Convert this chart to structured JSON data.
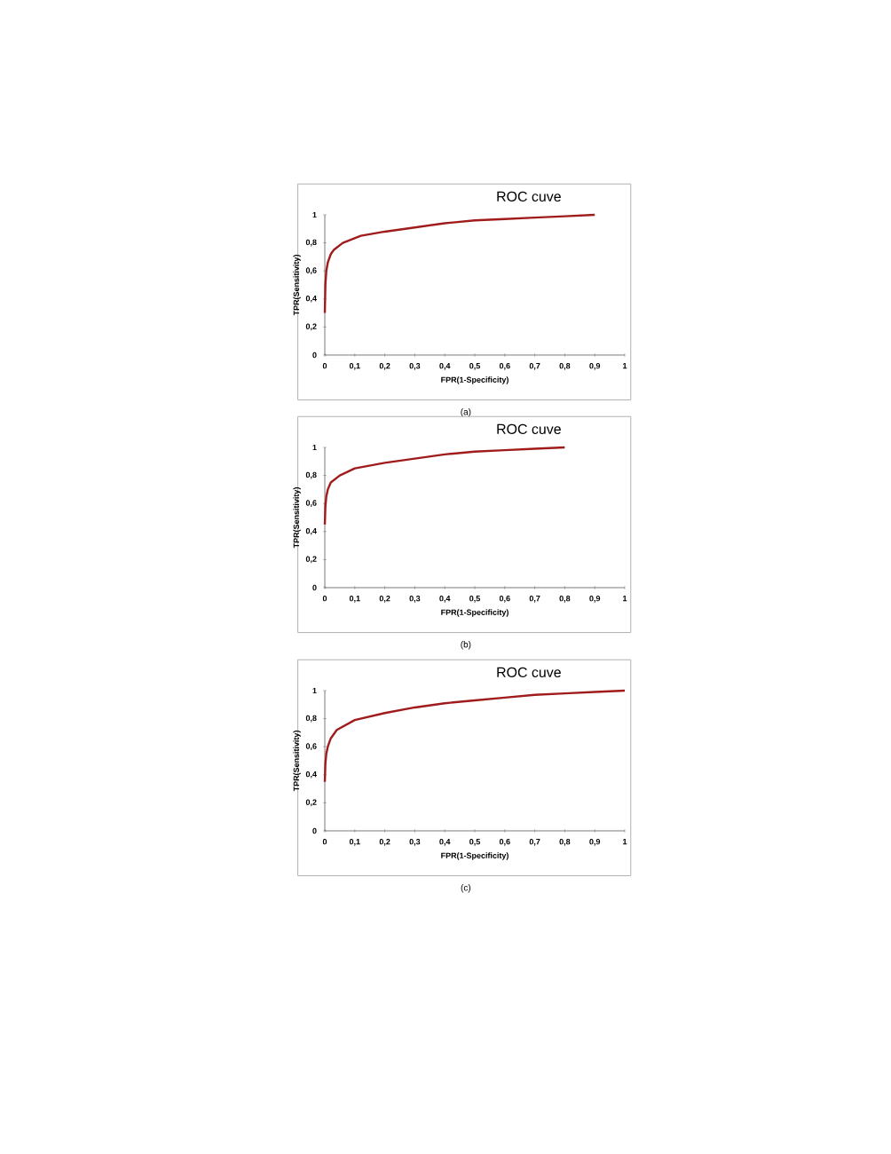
{
  "chart_data": [
    {
      "type": "line",
      "title": "ROC cuve",
      "xlabel": "FPR(1-Specificity)",
      "ylabel": "TPR(Sensitivity)",
      "annotations": [
        "(a)"
      ],
      "x": [
        0,
        0.002,
        0.005,
        0.01,
        0.02,
        0.03,
        0.06,
        0.12,
        0.2,
        0.3,
        0.4,
        0.5,
        0.6,
        0.7,
        0.8,
        0.9
      ],
      "series": [
        {
          "color": "#a01c1c",
          "values": [
            0.3,
            0.5,
            0.6,
            0.66,
            0.72,
            0.75,
            0.8,
            0.85,
            0.88,
            0.91,
            0.94,
            0.96,
            0.97,
            0.98,
            0.99,
            1
          ]
        }
      ],
      "xlim": [
        0,
        1
      ],
      "ylim": [
        0,
        1
      ],
      "line_style": "solid",
      "marker": "none",
      "xticks": [
        0,
        {
          "value": 0.1,
          "label": "0,1"
        },
        {
          "value": 0.2,
          "label": "0,2"
        },
        {
          "value": 0.3,
          "label": "0,3"
        },
        {
          "value": 0.4,
          "label": "0,4"
        },
        {
          "value": 0.5,
          "label": "0,5"
        },
        {
          "value": 0.6,
          "label": "0,6"
        },
        {
          "value": 0.7,
          "label": "0,7"
        },
        {
          "value": 0.8,
          "label": "0,8"
        },
        {
          "value": 0.9,
          "label": "0,9"
        },
        1
      ],
      "yticks": [
        0,
        {
          "value": 0.2,
          "label": "0,2"
        },
        {
          "value": 0.4,
          "label": "0,4"
        },
        {
          "value": 0.6,
          "label": "0,6"
        },
        {
          "value": 0.8,
          "label": "0,8"
        },
        1
      ]
    },
    {
      "type": "line",
      "title": "ROC cuve",
      "xlabel": "FPR(1-Specificity)",
      "ylabel": "TPR(Sensitivity)",
      "annotations": [
        "(b)"
      ],
      "x": [
        0,
        0.002,
        0.005,
        0.01,
        0.02,
        0.05,
        0.1,
        0.2,
        0.3,
        0.4,
        0.5,
        0.6,
        0.7,
        0.8
      ],
      "series": [
        {
          "color": "#a01c1c",
          "values": [
            0.45,
            0.58,
            0.65,
            0.7,
            0.75,
            0.8,
            0.85,
            0.89,
            0.92,
            0.95,
            0.97,
            0.98,
            0.99,
            1
          ]
        }
      ],
      "xlim": [
        0,
        1
      ],
      "ylim": [
        0,
        1
      ],
      "line_style": "solid",
      "marker": "none",
      "xticks": [
        0,
        {
          "value": 0.1,
          "label": "0,1"
        },
        {
          "value": 0.2,
          "label": "0,2"
        },
        {
          "value": 0.3,
          "label": "0,3"
        },
        {
          "value": 0.4,
          "label": "0,4"
        },
        {
          "value": 0.5,
          "label": "0,5"
        },
        {
          "value": 0.6,
          "label": "0,6"
        },
        {
          "value": 0.7,
          "label": "0,7"
        },
        {
          "value": 0.8,
          "label": "0,8"
        },
        {
          "value": 0.9,
          "label": "0,9"
        },
        1
      ],
      "yticks": [
        0,
        {
          "value": 0.2,
          "label": "0,2"
        },
        {
          "value": 0.4,
          "label": "0,4"
        },
        {
          "value": 0.6,
          "label": "0,6"
        },
        {
          "value": 0.8,
          "label": "0,8"
        },
        1
      ]
    },
    {
      "type": "line",
      "title": "ROC cuve",
      "xlabel": "FPR(1-Specificity)",
      "ylabel": "TPR(Sensitivity)",
      "annotations": [
        "(c)"
      ],
      "x": [
        0,
        0.002,
        0.005,
        0.01,
        0.02,
        0.04,
        0.1,
        0.2,
        0.3,
        0.4,
        0.5,
        0.6,
        0.7,
        0.8,
        0.9,
        1
      ],
      "series": [
        {
          "color": "#a01c1c",
          "values": [
            0.35,
            0.48,
            0.55,
            0.6,
            0.66,
            0.72,
            0.79,
            0.84,
            0.88,
            0.91,
            0.93,
            0.95,
            0.97,
            0.98,
            0.99,
            1
          ]
        }
      ],
      "xlim": [
        0,
        1
      ],
      "ylim": [
        0,
        1
      ],
      "line_style": "solid",
      "marker": "none",
      "xticks": [
        0,
        {
          "value": 0.1,
          "label": "0,1"
        },
        {
          "value": 0.2,
          "label": "0,2"
        },
        {
          "value": 0.3,
          "label": "0,3"
        },
        {
          "value": 0.4,
          "label": "0,4"
        },
        {
          "value": 0.5,
          "label": "0,5"
        },
        {
          "value": 0.6,
          "label": "0,6"
        },
        {
          "value": 0.7,
          "label": "0,7"
        },
        {
          "value": 0.8,
          "label": "0,8"
        },
        {
          "value": 0.9,
          "label": "0,9"
        },
        1
      ],
      "yticks": [
        0,
        {
          "value": 0.2,
          "label": "0,2"
        },
        {
          "value": 0.4,
          "label": "0,4"
        },
        {
          "value": 0.6,
          "label": "0,6"
        },
        {
          "value": 0.8,
          "label": "0,8"
        },
        1
      ]
    }
  ]
}
